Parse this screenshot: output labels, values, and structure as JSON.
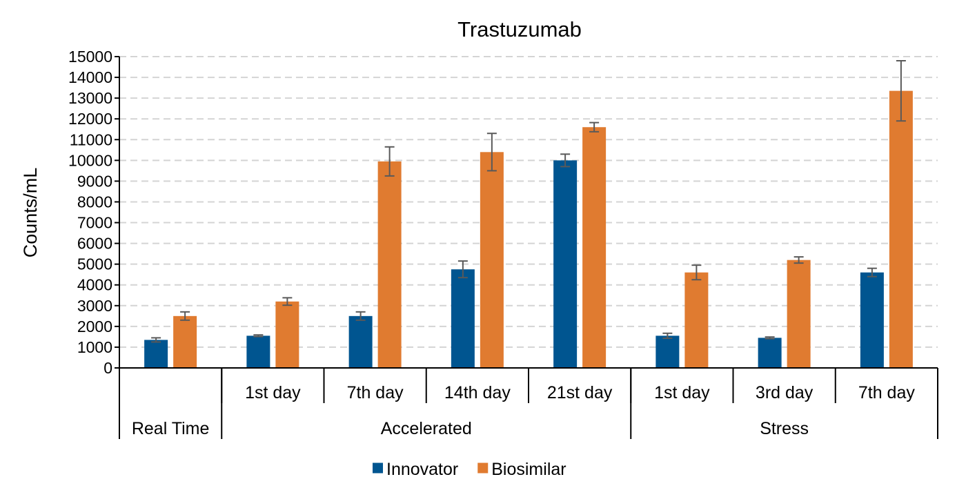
{
  "chart_data": {
    "type": "bar",
    "title": "Trastuzumab",
    "ylabel": "Counts/mL",
    "xlabel": "",
    "ylim": [
      0,
      15000
    ],
    "ytick_step": 1000,
    "grid": true,
    "legend_position": "bottom",
    "groups": [
      {
        "label": "Real Time",
        "categories": [
          ""
        ]
      },
      {
        "label": "Accelerated",
        "categories": [
          "1st day",
          "7th day",
          "14th day",
          "21st day"
        ]
      },
      {
        "label": "Stress",
        "categories": [
          "1st day",
          "3rd day",
          "7th day"
        ]
      }
    ],
    "series": [
      {
        "name": "Innovator",
        "color": "#005590",
        "values": [
          1350,
          1550,
          2500,
          4750,
          10000,
          1550,
          1450,
          4600
        ],
        "errors": [
          100,
          40,
          200,
          400,
          300,
          120,
          40,
          200
        ]
      },
      {
        "name": "Biosimilar",
        "color": "#E07B30",
        "values": [
          2500,
          3200,
          9950,
          10400,
          11600,
          4600,
          5200,
          13350
        ],
        "errors": [
          200,
          180,
          700,
          900,
          220,
          350,
          150,
          1450
        ]
      }
    ]
  }
}
